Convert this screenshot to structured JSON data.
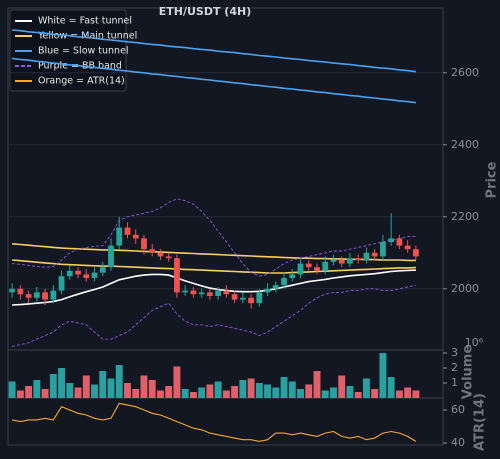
{
  "chart_data": [
    {
      "type": "candlestick",
      "title": "ETH/USDT (4H)",
      "ylabel": "Price",
      "up_color": "#26a69a",
      "down_color": "#ef5350",
      "open": [
        1990,
        2000,
        1985,
        1975,
        1990,
        1970,
        1995,
        2035,
        2050,
        2040,
        2030,
        2045,
        2060,
        2120,
        2170,
        2150,
        2140,
        2110,
        2100,
        2090,
        2085,
        1990,
        1995,
        1985,
        1990,
        1980,
        1995,
        1985,
        1970,
        1975,
        1960,
        1990,
        2000,
        2010,
        2030,
        2040,
        2070,
        2060,
        2050,
        2075,
        2080,
        2070,
        2085,
        2080,
        2100,
        2090,
        2130,
        2140,
        2120,
        2110
      ],
      "high": [
        2015,
        2010,
        1995,
        2005,
        2000,
        2010,
        2050,
        2065,
        2060,
        2055,
        2060,
        2075,
        2140,
        2200,
        2185,
        2165,
        2150,
        2125,
        2110,
        2100,
        2095,
        2010,
        2005,
        2000,
        2000,
        2005,
        2010,
        1995,
        1990,
        1985,
        2000,
        2015,
        2020,
        2045,
        2055,
        2085,
        2080,
        2070,
        2090,
        2095,
        2090,
        2100,
        2095,
        2115,
        2110,
        2150,
        2210,
        2150,
        2135,
        2120
      ],
      "low": [
        1975,
        1970,
        1960,
        1965,
        1955,
        1960,
        1985,
        2025,
        2030,
        2020,
        2020,
        2035,
        2050,
        2110,
        2140,
        2125,
        2095,
        2090,
        2080,
        2075,
        1975,
        1980,
        1975,
        1975,
        1970,
        1970,
        1975,
        1960,
        1960,
        1945,
        1950,
        1980,
        1990,
        2000,
        2020,
        2030,
        2050,
        2040,
        2040,
        2065,
        2060,
        2060,
        2070,
        2070,
        2080,
        2080,
        2120,
        2110,
        2100,
        2080
      ],
      "close": [
        2000,
        1985,
        1975,
        1990,
        1970,
        1995,
        2035,
        2050,
        2040,
        2030,
        2045,
        2060,
        2120,
        2170,
        2150,
        2140,
        2110,
        2100,
        2090,
        2085,
        1990,
        1995,
        1985,
        1990,
        1980,
        1995,
        1985,
        1970,
        1975,
        1960,
        1990,
        2000,
        2010,
        2030,
        2040,
        2070,
        2060,
        2050,
        2075,
        2080,
        2070,
        2085,
        2080,
        2100,
        2090,
        2130,
        2140,
        2120,
        2110,
        2090
      ],
      "series": [
        {
          "name": "White = Fast tunnel",
          "color": "#ffffff",
          "dashed": false,
          "lines": [
            [
              1955,
              1956,
              1958,
              1960,
              1962,
              1965,
              1970,
              1978,
              1985,
              1992,
              1998,
              2005,
              2015,
              2025,
              2030,
              2035,
              2038,
              2040,
              2040,
              2038,
              2030,
              2022,
              2015,
              2008,
              2002,
              1998,
              1995,
              1993,
              1992,
              1992,
              1993,
              1996,
              2000,
              2005,
              2010,
              2015,
              2020,
              2023,
              2026,
              2030,
              2033,
              2036,
              2038,
              2040,
              2042,
              2045,
              2048,
              2050,
              2051,
              2052
            ]
          ]
        },
        {
          "name": "Yellow = Main tunnel",
          "color": "#f5d061",
          "dashed": false,
          "lines": [
            [
              2125,
              2123,
              2121,
              2119,
              2117,
              2115,
              2113,
              2112,
              2111,
              2110,
              2109,
              2108,
              2108,
              2107,
              2106,
              2105,
              2104,
              2103,
              2102,
              2101,
              2100,
              2099,
              2098,
              2097,
              2096,
              2095,
              2094,
              2093,
              2092,
              2091,
              2090,
              2089,
              2088,
              2087,
              2086,
              2085,
              2085,
              2084,
              2084,
              2083,
              2083,
              2082,
              2082,
              2081,
              2081,
              2080,
              2080,
              2080,
              2079,
              2079
            ],
            [
              2080,
              2078,
              2076,
              2074,
              2072,
              2070,
              2068,
              2067,
              2066,
              2065,
              2064,
              2063,
              2063,
              2062,
              2061,
              2060,
              2059,
              2058,
              2057,
              2056,
              2055,
              2054,
              2053,
              2052,
              2051,
              2050,
              2049,
              2048,
              2047,
              2046,
              2045,
              2044,
              2044,
              2044,
              2045,
              2046,
              2047,
              2048,
              2049,
              2050,
              2051,
              2052,
              2053,
              2054,
              2055,
              2056,
              2057,
              2058,
              2058,
              2059
            ]
          ]
        },
        {
          "name": "Blue = Slow tunnel",
          "color": "#4aa3f0",
          "dashed": false,
          "lines": [
            [
              2719,
              2717,
              2714,
              2712,
              2710,
              2707,
              2705,
              2703,
              2700,
              2698,
              2696,
              2693,
              2691,
              2689,
              2686,
              2684,
              2681,
              2679,
              2677,
              2674,
              2672,
              2670,
              2667,
              2665,
              2663,
              2660,
              2658,
              2656,
              2653,
              2651,
              2648,
              2646,
              2644,
              2641,
              2639,
              2637,
              2634,
              2632,
              2630,
              2627,
              2625,
              2623,
              2620,
              2618,
              2615,
              2613,
              2611,
              2608,
              2606,
              2603
            ],
            [
              2640,
              2637,
              2635,
              2632,
              2630,
              2627,
              2625,
              2622,
              2620,
              2617,
              2615,
              2612,
              2610,
              2607,
              2605,
              2602,
              2600,
              2597,
              2595,
              2592,
              2590,
              2587,
              2585,
              2582,
              2580,
              2577,
              2575,
              2572,
              2570,
              2567,
              2565,
              2562,
              2560,
              2557,
              2555,
              2552,
              2550,
              2547,
              2545,
              2542,
              2540,
              2537,
              2535,
              2532,
              2530,
              2527,
              2525,
              2522,
              2520,
              2517
            ]
          ]
        },
        {
          "name": "Purple = BB band",
          "color": "#8c5ce0",
          "dashed": true,
          "lines": [
            [
              2070,
              2068,
              2065,
              2062,
              2060,
              2062,
              2080,
              2100,
              2110,
              2115,
              2118,
              2120,
              2150,
              2190,
              2200,
              2205,
              2210,
              2215,
              2225,
              2240,
              2250,
              2245,
              2235,
              2215,
              2190,
              2160,
              2130,
              2100,
              2070,
              2045,
              2035,
              2040,
              2055,
              2070,
              2080,
              2085,
              2090,
              2095,
              2100,
              2105,
              2105,
              2110,
              2115,
              2120,
              2125,
              2130,
              2135,
              2140,
              2145,
              2145
            ],
            [
              1840,
              1845,
              1850,
              1860,
              1870,
              1880,
              1900,
              1910,
              1905,
              1900,
              1880,
              1860,
              1860,
              1870,
              1880,
              1900,
              1920,
              1940,
              1950,
              1960,
              1930,
              1910,
              1900,
              1900,
              1895,
              1900,
              1895,
              1890,
              1885,
              1880,
              1870,
              1880,
              1895,
              1910,
              1925,
              1940,
              1960,
              1975,
              1985,
              1990,
              1990,
              1995,
              1995,
              2000,
              2000,
              1995,
              1995,
              2000,
              2005,
              2010
            ]
          ]
        }
      ],
      "ylim": [
        1830,
        2780
      ],
      "yticks": [
        2000,
        2200,
        2400,
        2600
      ],
      "grid": true,
      "legend": "upper left"
    },
    {
      "type": "bar",
      "ylabel": "Volume",
      "offset_label": "10⁶",
      "up_color": "#2aa1a0",
      "down_color": "#e0606a",
      "values": [
        1.1,
        0.5,
        0.8,
        1.2,
        0.6,
        1.6,
        2.0,
        1.0,
        0.7,
        1.5,
        0.9,
        1.8,
        1.3,
        2.2,
        1.0,
        0.6,
        1.5,
        1.2,
        0.5,
        0.8,
        2.1,
        0.6,
        0.4,
        0.7,
        0.9,
        1.1,
        0.5,
        0.8,
        1.2,
        1.3,
        1.0,
        0.9,
        0.7,
        1.4,
        1.1,
        0.6,
        0.9,
        1.8,
        0.5,
        0.7,
        1.5,
        0.8,
        0.4,
        1.3,
        0.6,
        3.0,
        1.4,
        0.5,
        0.7,
        0.5
      ],
      "ylim": [
        0,
        3.2
      ],
      "yticks": [
        1,
        2,
        3
      ]
    },
    {
      "type": "line",
      "ylabel": "ATR(14)",
      "series": [
        {
          "name": "Orange = ATR(14)",
          "color": "#f7a731",
          "values": [
            54,
            53,
            54,
            54,
            55,
            54,
            62,
            60,
            58,
            57,
            55,
            54,
            55,
            64,
            63,
            62,
            60,
            58,
            57,
            55,
            53,
            51,
            49,
            48,
            46,
            45,
            44,
            43,
            42,
            42,
            41,
            42,
            46,
            46,
            45,
            46,
            45,
            44,
            46,
            47,
            44,
            43,
            44,
            42,
            43,
            46,
            47,
            46,
            44,
            41
          ]
        }
      ],
      "ylim": [
        38.8,
        67.3
      ],
      "yticks": [
        40,
        60
      ]
    }
  ]
}
